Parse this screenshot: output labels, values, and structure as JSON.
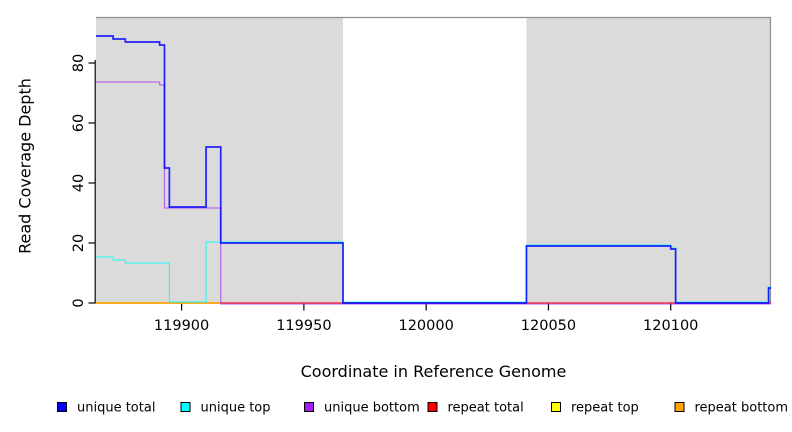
{
  "chart_data": {
    "type": "line",
    "subtype": "step-coverage",
    "title": "",
    "xlabel": "Coordinate in Reference Genome",
    "ylabel": "Read Coverage Depth",
    "xlim": [
      119865,
      120141
    ],
    "ylim": [
      0,
      95
    ],
    "x_ticks": [
      119900,
      119950,
      120000,
      120050,
      120100
    ],
    "y_ticks": [
      0,
      20,
      40,
      60,
      80
    ],
    "grid": false,
    "legend_position": "bottom",
    "colors": {
      "plot_border": "#8F8F8F",
      "axis": "#000000",
      "shaded_region_fill": "#DBDBDB",
      "unshaded_fill": "#FFFFFF"
    },
    "background_regions": [
      {
        "name": "shaded-left",
        "x0": 119865,
        "x1": 119966,
        "fill": "#DBDBDB"
      },
      {
        "name": "unshaded-middle",
        "x0": 119966,
        "x1": 120041,
        "fill": "#FFFFFF"
      },
      {
        "name": "shaded-right",
        "x0": 120041,
        "x1": 120141,
        "fill": "#DBDBDB"
      }
    ],
    "series": [
      {
        "key": "repeat-top",
        "label": "repeat top",
        "color": "#FFFF00",
        "x_end": 119916,
        "steps": [
          [
            119865,
            0
          ]
        ]
      },
      {
        "key": "repeat-total",
        "label": "repeat total",
        "color": "#FF0000",
        "steps": [
          [
            119865,
            0
          ]
        ]
      },
      {
        "key": "repeat-bottom",
        "label": "repeat bottom",
        "color": "#FFA500",
        "x_end": 119916,
        "steps": [
          [
            119865,
            0
          ]
        ]
      },
      {
        "key": "unique-bottom",
        "label": "unique bottom",
        "color": "#A020F0",
        "steps": [
          [
            119865,
            74
          ],
          [
            119891,
            73
          ],
          [
            119893,
            32
          ],
          [
            119916,
            0
          ]
        ]
      },
      {
        "key": "unique-top",
        "label": "unique top",
        "color": "#00FFFF",
        "steps": [
          [
            119865,
            15
          ],
          [
            119872,
            14
          ],
          [
            119877,
            13
          ],
          [
            119895,
            0
          ],
          [
            119910,
            20
          ],
          [
            119966,
            0
          ],
          [
            120041,
            19
          ],
          [
            120100,
            18
          ],
          [
            120102,
            0
          ],
          [
            120140,
            5
          ]
        ]
      },
      {
        "key": "unique-total",
        "label": "unique total",
        "color": "#0000FF",
        "steps": [
          [
            119865,
            89
          ],
          [
            119872,
            88
          ],
          [
            119877,
            87
          ],
          [
            119891,
            86
          ],
          [
            119893,
            45
          ],
          [
            119895,
            32
          ],
          [
            119910,
            52
          ],
          [
            119916,
            20
          ],
          [
            119966,
            0
          ],
          [
            120041,
            19
          ],
          [
            120100,
            18
          ],
          [
            120102,
            0
          ],
          [
            120140,
            5
          ]
        ]
      }
    ],
    "legend": [
      {
        "label": "unique total",
        "color": "#0000FF"
      },
      {
        "label": "unique top",
        "color": "#00FFFF"
      },
      {
        "label": "unique bottom",
        "color": "#A020F0"
      },
      {
        "label": "repeat total",
        "color": "#FF0000"
      },
      {
        "label": "repeat top",
        "color": "#FFFF00"
      },
      {
        "label": "repeat bottom",
        "color": "#FFA500"
      }
    ]
  }
}
